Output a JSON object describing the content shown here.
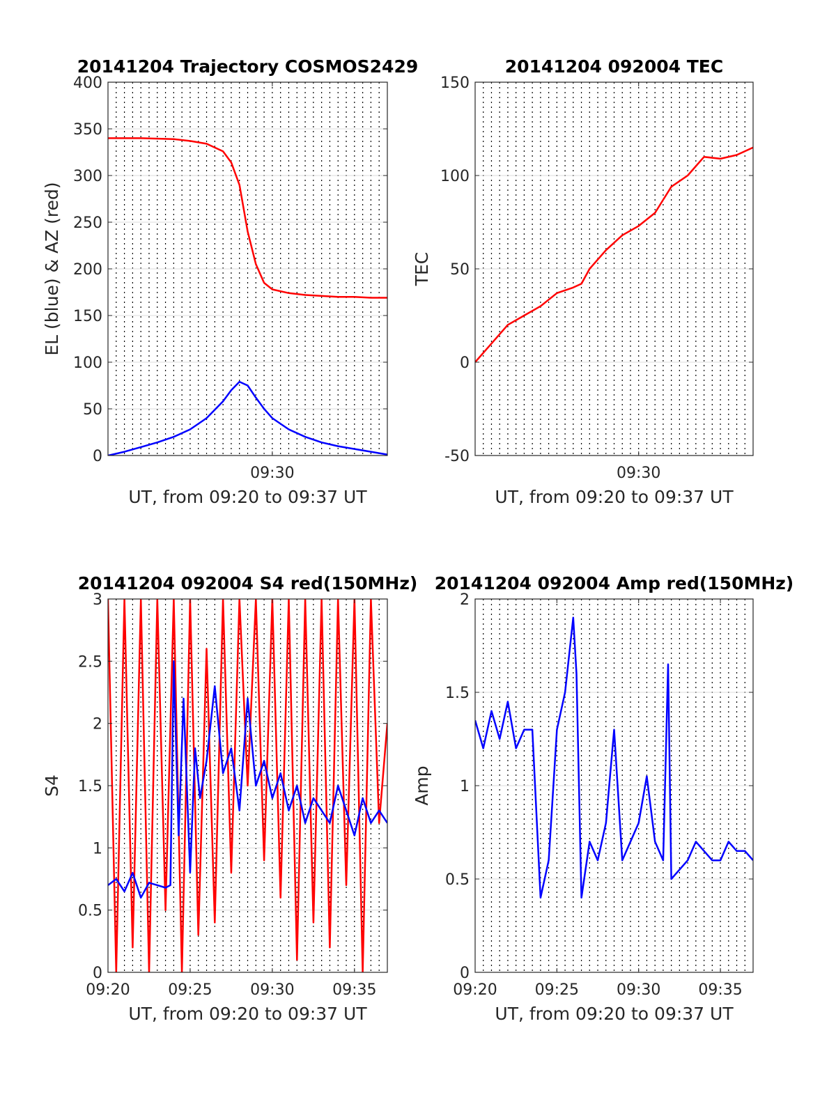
{
  "chart_data": [
    {
      "type": "line",
      "title": "20141204 Trajectory COSMOS2429",
      "xlabel": "UT, from 09:20 to 09:37 UT",
      "ylabel": "EL (blue) & AZ (red)",
      "xlim": [
        0,
        17
      ],
      "ylim": [
        0,
        400
      ],
      "yticks": [
        0,
        50,
        100,
        150,
        200,
        250,
        300,
        350,
        400
      ],
      "xticks": [
        {
          "x": 10,
          "label": "09:30"
        }
      ],
      "grid": true,
      "series": [
        {
          "color": "#ff0000",
          "x": [
            0,
            2,
            4,
            5,
            6,
            7,
            7.5,
            8,
            8.5,
            9,
            9.5,
            10,
            11,
            12,
            13,
            14,
            15,
            16,
            17
          ],
          "y": [
            340,
            340,
            339,
            337,
            334,
            326,
            314,
            290,
            240,
            205,
            185,
            178,
            174,
            172,
            171,
            170,
            170,
            169,
            169
          ]
        },
        {
          "color": "#0000ff",
          "x": [
            0,
            1,
            2,
            3,
            4,
            5,
            6,
            7,
            7.5,
            8,
            8.5,
            9,
            9.5,
            10,
            11,
            12,
            13,
            14,
            15,
            16,
            17
          ],
          "y": [
            0,
            4,
            9,
            14,
            20,
            28,
            40,
            58,
            70,
            79,
            75,
            62,
            50,
            40,
            28,
            20,
            14,
            10,
            7,
            4,
            1
          ]
        }
      ]
    },
    {
      "type": "line",
      "title": "20141204 092004 TEC",
      "xlabel": "UT, from 09:20 to 09:37 UT",
      "ylabel": "TEC",
      "xlim": [
        0,
        17
      ],
      "ylim": [
        -50,
        150
      ],
      "yticks": [
        -50,
        0,
        50,
        100,
        150
      ],
      "xticks": [
        {
          "x": 10,
          "label": "09:30"
        }
      ],
      "grid": true,
      "series": [
        {
          "color": "#ff0000",
          "x": [
            0,
            1,
            2,
            3,
            4,
            5,
            6,
            6.5,
            7,
            8,
            9,
            10,
            11,
            12,
            13,
            14,
            15,
            16,
            17
          ],
          "y": [
            0,
            10,
            20,
            25,
            30,
            37,
            40,
            42,
            50,
            60,
            68,
            73,
            80,
            94,
            100,
            110,
            109,
            111,
            115
          ]
        }
      ]
    },
    {
      "type": "line",
      "title": "20141204 092004 S4 red(150MHz)",
      "xlabel": "UT, from 09:20 to 09:37 UT",
      "ylabel": "S4",
      "xlim": [
        0,
        17
      ],
      "ylim": [
        0,
        3
      ],
      "yticks": [
        0,
        0.5,
        1,
        1.5,
        2,
        2.5,
        3
      ],
      "xticks": [
        {
          "x": 0,
          "label": "09:20"
        },
        {
          "x": 5,
          "label": "09:25"
        },
        {
          "x": 10,
          "label": "09:30"
        },
        {
          "x": 15,
          "label": "09:35"
        }
      ],
      "grid": true,
      "series": [
        {
          "color": "#ff0000",
          "x": [
            0,
            0.5,
            1,
            1.5,
            2,
            2.5,
            3,
            3.5,
            4,
            4.5,
            5,
            5.5,
            6,
            6.5,
            7,
            7.5,
            8,
            8.5,
            9,
            9.5,
            10,
            10.5,
            11,
            11.5,
            12,
            12.5,
            13,
            13.5,
            14,
            14.5,
            15,
            15.5,
            16,
            16.5,
            17
          ],
          "y": [
            3,
            0,
            3,
            0.2,
            3,
            0,
            3,
            0.5,
            3,
            0,
            3,
            0.3,
            2.6,
            0.4,
            3,
            0.8,
            3,
            1.5,
            3,
            0.9,
            3,
            0.6,
            3,
            0.1,
            3,
            0.4,
            3,
            0.2,
            3,
            0.7,
            3,
            0,
            3,
            1.2,
            2
          ]
        },
        {
          "color": "#0000ff",
          "x": [
            0,
            0.5,
            1,
            1.5,
            2,
            2.5,
            3,
            3.5,
            3.8,
            4,
            4.3,
            4.6,
            5,
            5.3,
            5.6,
            6,
            6.5,
            7,
            7.5,
            8,
            8.5,
            9,
            9.5,
            10,
            10.5,
            11,
            11.5,
            12,
            12.5,
            13,
            13.5,
            14,
            14.5,
            15,
            15.5,
            16,
            16.5,
            17
          ],
          "y": [
            0.7,
            0.75,
            0.65,
            0.8,
            0.6,
            0.72,
            0.7,
            0.68,
            0.7,
            2.5,
            1.1,
            2.2,
            0.8,
            1.8,
            1.4,
            1.7,
            2.3,
            1.6,
            1.8,
            1.3,
            2.2,
            1.5,
            1.7,
            1.4,
            1.6,
            1.3,
            1.5,
            1.2,
            1.4,
            1.3,
            1.2,
            1.5,
            1.3,
            1.1,
            1.4,
            1.2,
            1.3,
            1.2
          ]
        }
      ]
    },
    {
      "type": "line",
      "title": "20141204 092004 Amp red(150MHz)",
      "xlabel": "UT, from 09:20 to 09:37 UT",
      "ylabel": "Amp",
      "xlim": [
        0,
        17
      ],
      "ylim": [
        0,
        2
      ],
      "yticks": [
        0,
        0.5,
        1,
        1.5,
        2
      ],
      "xticks": [
        {
          "x": 0,
          "label": "09:20"
        },
        {
          "x": 5,
          "label": "09:25"
        },
        {
          "x": 10,
          "label": "09:30"
        },
        {
          "x": 15,
          "label": "09:35"
        }
      ],
      "grid": true,
      "series": [
        {
          "color": "#0000ff",
          "x": [
            0,
            0.5,
            1,
            1.5,
            2,
            2.5,
            3,
            3.5,
            4,
            4.5,
            5,
            5.5,
            6,
            6.2,
            6.5,
            7,
            7.5,
            8,
            8.5,
            9,
            9.5,
            10,
            10.5,
            11,
            11.5,
            11.8,
            12,
            12.5,
            13,
            13.5,
            14,
            14.5,
            15,
            15.5,
            16,
            16.5,
            17
          ],
          "y": [
            1.35,
            1.2,
            1.4,
            1.25,
            1.45,
            1.2,
            1.3,
            1.3,
            0.4,
            0.6,
            1.3,
            1.5,
            1.9,
            1.6,
            0.4,
            0.7,
            0.6,
            0.8,
            1.3,
            0.6,
            0.7,
            0.8,
            1.05,
            0.7,
            0.6,
            1.65,
            0.5,
            0.55,
            0.6,
            0.7,
            0.65,
            0.6,
            0.6,
            0.7,
            0.65,
            0.65,
            0.6
          ]
        }
      ]
    }
  ]
}
